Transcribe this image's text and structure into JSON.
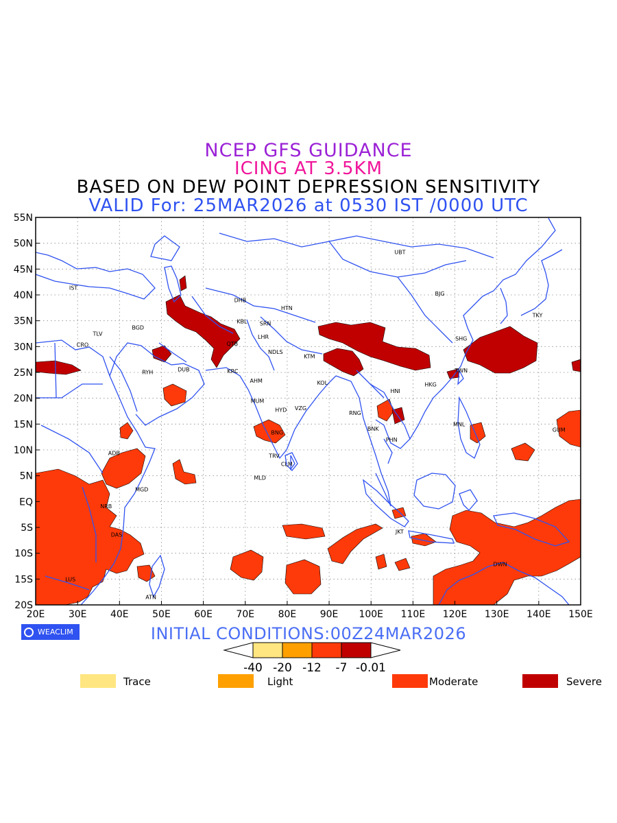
{
  "titles": {
    "line1": "NCEP GFS GUIDANCE",
    "line2": "ICING AT 3.5KM",
    "line3": "BASED ON DEW POINT DEPRESSION SENSITIVITY",
    "line4": "VALID For: 25MAR2026 at 0530 IST /0000 UTC"
  },
  "map": {
    "lon_range": [
      20,
      150
    ],
    "lat_range": [
      -20,
      55
    ],
    "x_ticks": [
      "20E",
      "30E",
      "40E",
      "50E",
      "60E",
      "70E",
      "80E",
      "90E",
      "100E",
      "110E",
      "120E",
      "130E",
      "140E",
      "150E"
    ],
    "y_ticks": [
      "55N",
      "50N",
      "45N",
      "40N",
      "35N",
      "30N",
      "25N",
      "20N",
      "15N",
      "10N",
      "5N",
      "EQ",
      "5S",
      "10S",
      "15S",
      "20S"
    ],
    "grid": "dotted",
    "colors": {
      "coastline": "#2f52f0",
      "trace": "#ffe680",
      "light": "#ffa000",
      "moderate": "#ff3a0a",
      "severe": "#c00000"
    },
    "stations": [
      {
        "name": "UBT",
        "lon": 106.9,
        "lat": 47.9
      },
      {
        "name": "BJG",
        "lon": 116.4,
        "lat": 39.9
      },
      {
        "name": "TKY",
        "lon": 139.7,
        "lat": 35.7
      },
      {
        "name": "SHG",
        "lon": 121.5,
        "lat": 31.2
      },
      {
        "name": "TWN",
        "lon": 121.5,
        "lat": 25.0
      },
      {
        "name": "HKG",
        "lon": 114.2,
        "lat": 22.3
      },
      {
        "name": "HNI",
        "lon": 105.8,
        "lat": 21.0
      },
      {
        "name": "MNL",
        "lon": 121.0,
        "lat": 14.6
      },
      {
        "name": "GUM",
        "lon": 144.8,
        "lat": 13.5
      },
      {
        "name": "BNK",
        "lon": 100.5,
        "lat": 13.7
      },
      {
        "name": "PHN",
        "lon": 104.9,
        "lat": 11.6
      },
      {
        "name": "RNG",
        "lon": 96.2,
        "lat": 16.8
      },
      {
        "name": "JKT",
        "lon": 106.8,
        "lat": -6.2
      },
      {
        "name": "DWN",
        "lon": 130.8,
        "lat": -12.5
      },
      {
        "name": "DHB",
        "lon": 68.8,
        "lat": 38.6
      },
      {
        "name": "HTN",
        "lon": 79.9,
        "lat": 37.1
      },
      {
        "name": "KBL",
        "lon": 69.2,
        "lat": 34.5
      },
      {
        "name": "SRN",
        "lon": 74.8,
        "lat": 34.1
      },
      {
        "name": "LHR",
        "lon": 74.3,
        "lat": 31.5
      },
      {
        "name": "NDLS",
        "lon": 77.2,
        "lat": 28.6
      },
      {
        "name": "KTM",
        "lon": 85.3,
        "lat": 27.7
      },
      {
        "name": "KRC",
        "lon": 67.0,
        "lat": 24.9
      },
      {
        "name": "AHM",
        "lon": 72.6,
        "lat": 23.0
      },
      {
        "name": "KOL",
        "lon": 88.4,
        "lat": 22.6
      },
      {
        "name": "MUM",
        "lon": 72.9,
        "lat": 19.1
      },
      {
        "name": "HYD",
        "lon": 78.5,
        "lat": 17.4
      },
      {
        "name": "VZG",
        "lon": 83.2,
        "lat": 17.7
      },
      {
        "name": "BNG",
        "lon": 77.6,
        "lat": 13.0
      },
      {
        "name": "TRV",
        "lon": 76.9,
        "lat": 8.5
      },
      {
        "name": "CLM",
        "lon": 79.9,
        "lat": 6.9
      },
      {
        "name": "MLD",
        "lon": 73.5,
        "lat": 4.2
      },
      {
        "name": "QTB",
        "lon": 66.9,
        "lat": 30.2
      },
      {
        "name": "IST",
        "lon": 29.0,
        "lat": 41.0
      },
      {
        "name": "TLV",
        "lon": 34.8,
        "lat": 32.1
      },
      {
        "name": "CRO",
        "lon": 31.2,
        "lat": 30.0
      },
      {
        "name": "BGD",
        "lon": 44.4,
        "lat": 33.3
      },
      {
        "name": "RYH",
        "lon": 46.7,
        "lat": 24.7
      },
      {
        "name": "DUB",
        "lon": 55.3,
        "lat": 25.2
      },
      {
        "name": "ADB",
        "lon": 38.7,
        "lat": 9.0
      },
      {
        "name": "MGD",
        "lon": 45.3,
        "lat": 2.0
      },
      {
        "name": "NRB",
        "lon": 36.8,
        "lat": -1.3
      },
      {
        "name": "DAS",
        "lon": 39.3,
        "lat": -6.8
      },
      {
        "name": "LUS",
        "lon": 28.3,
        "lat": -15.4
      },
      {
        "name": "ATN",
        "lon": 47.5,
        "lat": -18.9
      }
    ]
  },
  "logo_text": "WEACLIM",
  "initial_conditions": "INITIAL CONDITIONS:00Z24MAR2026",
  "colorbar": {
    "ticks": [
      "-40",
      "-20",
      "-12",
      "-7",
      "-0.01"
    ]
  },
  "legend": [
    {
      "label": "Trace",
      "color": "#ffe680"
    },
    {
      "label": "Light",
      "color": "#ffa000"
    },
    {
      "label": "Moderate",
      "color": "#ff3a0a"
    },
    {
      "label": "Severe",
      "color": "#c00000"
    }
  ]
}
